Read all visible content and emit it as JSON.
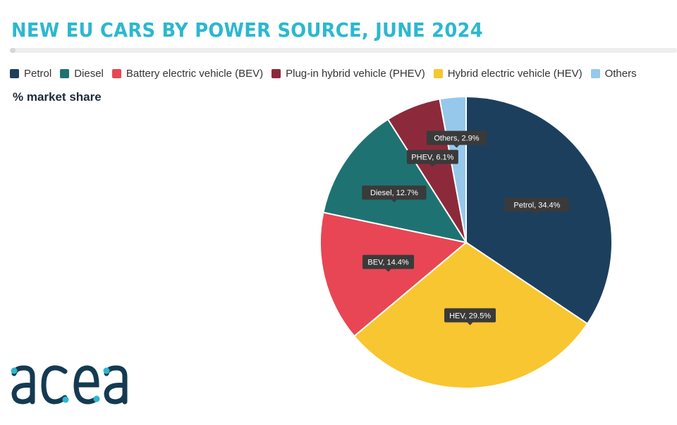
{
  "title": "NEW EU CARS BY POWER SOURCE, JUNE 2024",
  "subtitle": "% market share",
  "logo_text": "acea",
  "colors": {
    "title": "#2cb8cf",
    "label_bg": "#3a3a3a",
    "label_text": "#ffffff"
  },
  "chart_data": {
    "type": "pie",
    "title": "NEW EU CARS BY POWER SOURCE, JUNE 2024",
    "unit": "% market share",
    "legend_position": "top",
    "slices": [
      {
        "legend": "Petrol",
        "label": "Petrol, 34.4%",
        "value": 34.4,
        "color": "#1d3f5e"
      },
      {
        "legend": "Hybrid electric vehicle (HEV)",
        "label": "HEV, 29.5%",
        "value": 29.5,
        "color": "#f8c630"
      },
      {
        "legend": "Battery electric vehicle (BEV)",
        "label": "BEV, 14.4%",
        "value": 14.4,
        "color": "#e84654"
      },
      {
        "legend": "Diesel",
        "label": "Diesel, 12.7%",
        "value": 12.7,
        "color": "#1e7372"
      },
      {
        "legend": "Plug-in hybrid vehicle (PHEV)",
        "label": "PHEV, 6.1%",
        "value": 6.1,
        "color": "#8c2a3b"
      },
      {
        "legend": "Others",
        "label": "Others, 2.9%",
        "value": 2.9,
        "color": "#96c8ec"
      }
    ],
    "legend_order": [
      {
        "name": "Petrol",
        "color": "#1d3f5e"
      },
      {
        "name": "Diesel",
        "color": "#1e7372"
      },
      {
        "name": "Battery electric vehicle (BEV)",
        "color": "#e84654"
      },
      {
        "name": "Plug-in hybrid vehicle (PHEV)",
        "color": "#8c2a3b"
      },
      {
        "name": "Hybrid electric vehicle (HEV)",
        "color": "#f8c630"
      },
      {
        "name": "Others",
        "color": "#96c8ec"
      }
    ]
  }
}
